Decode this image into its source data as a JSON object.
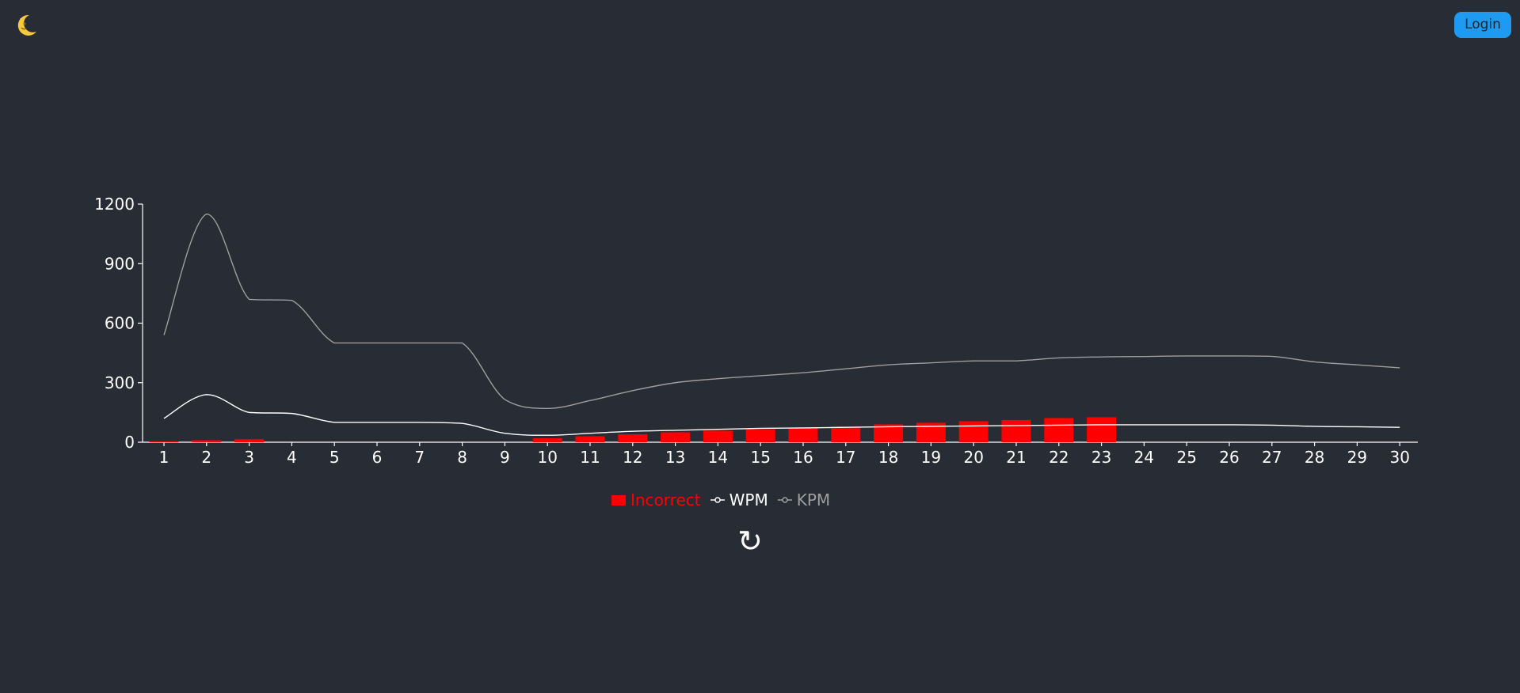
{
  "header": {
    "theme_icon": "moon-icon",
    "login_label": "Login"
  },
  "colors": {
    "background": "#282c34",
    "incorrect": "#ff0000",
    "wpm": "#ffffff",
    "kpm": "#9e9e9e",
    "login_button": "#1e9bf0"
  },
  "chart_data": {
    "type": "bar",
    "x": [
      1,
      2,
      3,
      4,
      5,
      6,
      7,
      8,
      9,
      10,
      11,
      12,
      13,
      14,
      15,
      16,
      17,
      18,
      19,
      20,
      21,
      22,
      23,
      24,
      25,
      26,
      27,
      28,
      29,
      30
    ],
    "ylim": [
      0,
      1200
    ],
    "yticks": [
      0,
      300,
      600,
      900,
      1200
    ],
    "series": [
      {
        "name": "Incorrect",
        "type": "bar",
        "values": [
          5,
          10,
          15,
          0,
          0,
          0,
          0,
          0,
          0,
          20,
          30,
          40,
          50,
          58,
          66,
          73,
          80,
          90,
          98,
          106,
          112,
          122,
          126,
          null,
          null,
          null,
          null,
          null,
          null,
          null
        ]
      },
      {
        "name": "WPM",
        "type": "line",
        "values": [
          120,
          240,
          150,
          145,
          100,
          100,
          100,
          95,
          45,
          35,
          45,
          55,
          60,
          65,
          70,
          72,
          75,
          78,
          80,
          82,
          84,
          86,
          88,
          88,
          88,
          88,
          86,
          80,
          78,
          75
        ]
      },
      {
        "name": "KPM",
        "type": "line",
        "values": [
          540,
          1150,
          720,
          715,
          500,
          500,
          500,
          500,
          215,
          170,
          210,
          260,
          300,
          320,
          335,
          350,
          370,
          390,
          400,
          410,
          410,
          425,
          430,
          432,
          435,
          435,
          433,
          405,
          390,
          375
        ]
      }
    ],
    "legend": "bottom-center"
  },
  "controls": {
    "reload_icon": "↻"
  }
}
